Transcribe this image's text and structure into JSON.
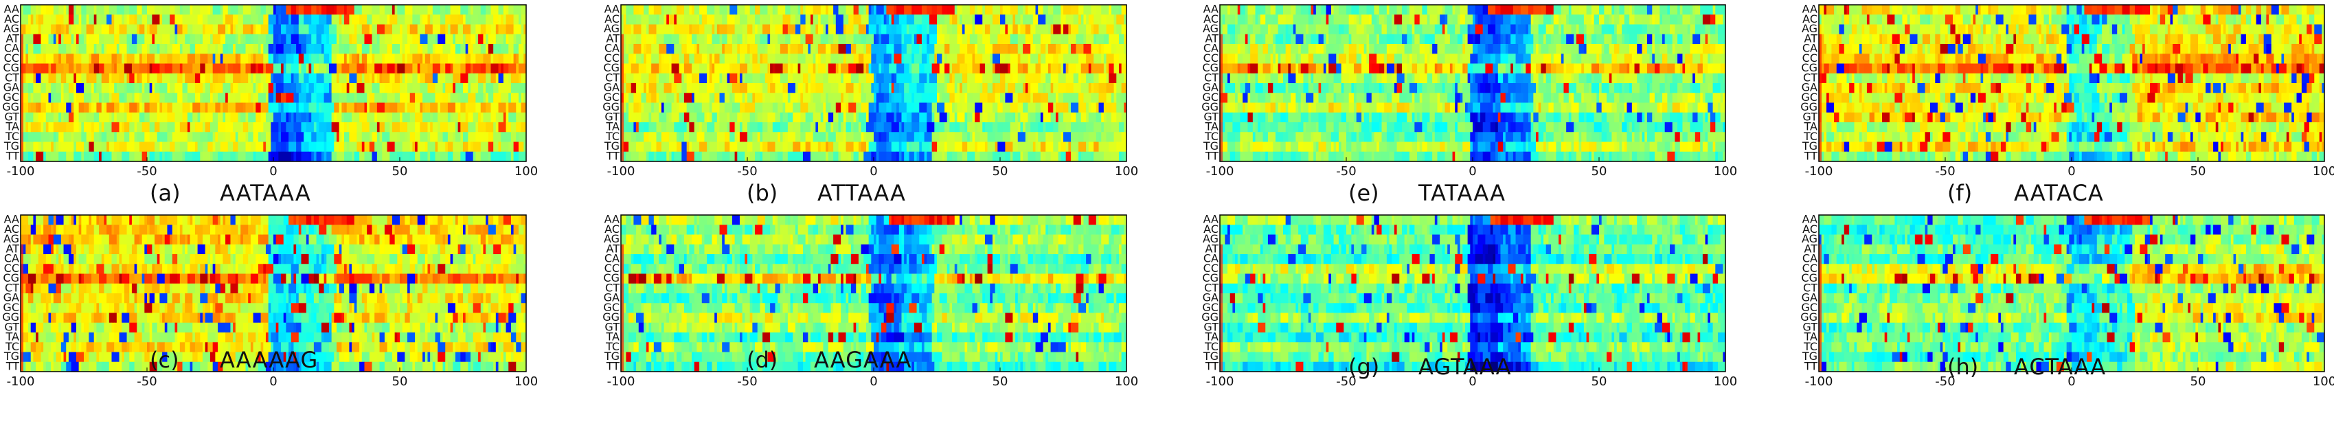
{
  "chart_data": [
    {
      "type": "heatmap",
      "label": "(a)",
      "motif": "AATAAA",
      "x_ticks": [
        "-100",
        "-50",
        "0",
        "50",
        "100"
      ],
      "y_categories": [
        "AA",
        "AC",
        "AG",
        "AT",
        "CA",
        "CC",
        "CG",
        "CT",
        "GA",
        "GC",
        "GG",
        "GT",
        "TA",
        "TC",
        "TG",
        "TT"
      ],
      "xlim": [
        -100,
        100
      ],
      "colormap": "jet",
      "band_rows": {
        "AA": "orange 5 to 25",
        "CG": "red-orange streaks"
      }
    },
    {
      "type": "heatmap",
      "label": "(b)",
      "motif": "ATTAAA",
      "x_ticks": [
        "-100",
        "-50",
        "0",
        "50",
        "100"
      ],
      "y_categories": [
        "AA",
        "AC",
        "AG",
        "AT",
        "CA",
        "CC",
        "CG",
        "CT",
        "GA",
        "GC",
        "GG",
        "GT",
        "TA",
        "TC",
        "TG",
        "TT"
      ],
      "xlim": [
        -100,
        100
      ]
    },
    {
      "type": "heatmap",
      "label": "(c)",
      "motif": "AAAAAG",
      "x_ticks": [
        "-100",
        "-50",
        "0",
        "50",
        "100"
      ],
      "y_categories": [
        "AA",
        "AC",
        "AG",
        "AT",
        "CA",
        "CC",
        "CG",
        "CT",
        "GA",
        "GC",
        "GG",
        "GT",
        "TA",
        "TC",
        "TG",
        "TT"
      ],
      "xlim": [
        -100,
        100
      ]
    },
    {
      "type": "heatmap",
      "label": "(d)",
      "motif": "AAGAAA",
      "x_ticks": [
        "-100",
        "-50",
        "0",
        "50",
        "100"
      ],
      "y_categories": [
        "AA",
        "AC",
        "AG",
        "AT",
        "CA",
        "CC",
        "CG",
        "CT",
        "GA",
        "GC",
        "GG",
        "GT",
        "TA",
        "TC",
        "TG",
        "TT"
      ],
      "xlim": [
        -100,
        100
      ]
    },
    {
      "type": "heatmap",
      "label": "(e)",
      "motif": "TATAAA",
      "x_ticks": [
        "-100",
        "-50",
        "0",
        "50",
        "100"
      ],
      "y_categories": [
        "AA",
        "AC",
        "AG",
        "AT",
        "CA",
        "CC",
        "CG",
        "CT",
        "GA",
        "GC",
        "GG",
        "GT",
        "TA",
        "TC",
        "TG",
        "TT"
      ],
      "xlim": [
        -100,
        100
      ]
    },
    {
      "type": "heatmap",
      "label": "(f)",
      "motif": "AATACA",
      "x_ticks": [
        "-100",
        "-50",
        "0",
        "50",
        "100"
      ],
      "y_categories": [
        "AA",
        "AC",
        "AG",
        "AT",
        "CA",
        "CC",
        "CG",
        "CT",
        "GA",
        "GC",
        "GG",
        "GT",
        "TA",
        "TC",
        "TG",
        "TT"
      ],
      "xlim": [
        -100,
        100
      ]
    },
    {
      "type": "heatmap",
      "label": "(g)",
      "motif": "AGTAAA",
      "x_ticks": [
        "-100",
        "-50",
        "0",
        "50",
        "100"
      ],
      "y_categories": [
        "AA",
        "AC",
        "AG",
        "AT",
        "CA",
        "CC",
        "CG",
        "CT",
        "GA",
        "GC",
        "GG",
        "GT",
        "TA",
        "TC",
        "TG",
        "TT"
      ],
      "xlim": [
        -100,
        100
      ]
    },
    {
      "type": "heatmap",
      "label": "(h)",
      "motif": "ACTAAA",
      "x_ticks": [
        "-100",
        "-50",
        "0",
        "50",
        "100"
      ],
      "y_categories": [
        "AA",
        "AC",
        "AG",
        "AT",
        "CA",
        "CC",
        "CG",
        "CT",
        "GA",
        "GC",
        "GG",
        "GT",
        "TA",
        "TC",
        "TG",
        "TT"
      ],
      "xlim": [
        -100,
        100
      ]
    }
  ]
}
